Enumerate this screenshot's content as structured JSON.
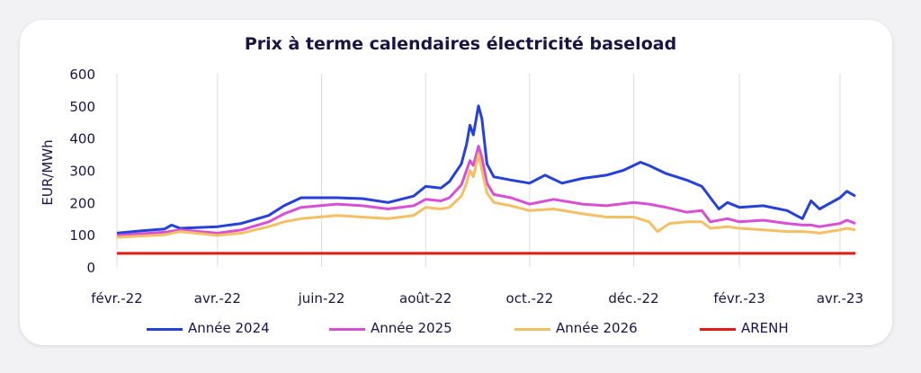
{
  "chart_data": {
    "type": "line",
    "title": "Prix à terme calendaires électricité baseload",
    "ylabel": "EUR/MWh",
    "xlabel": "",
    "ylim": [
      0,
      600
    ],
    "yticks": [
      0,
      100,
      200,
      300,
      400,
      500,
      600
    ],
    "xlim": [
      "2022-02-01",
      "2023-04-10"
    ],
    "xticks": [
      {
        "date": "2022-02-01",
        "label": "févr.-22"
      },
      {
        "date": "2022-04-01",
        "label": "avr.-22"
      },
      {
        "date": "2022-06-01",
        "label": "juin-22"
      },
      {
        "date": "2022-08-01",
        "label": "août-22"
      },
      {
        "date": "2022-10-01",
        "label": "oct.-22"
      },
      {
        "date": "2022-12-01",
        "label": "déc.-22"
      },
      {
        "date": "2023-02-01",
        "label": "févr.-23"
      },
      {
        "date": "2023-04-01",
        "label": "avr.-23"
      }
    ],
    "grid": "vertical",
    "legend_position": "bottom",
    "series": [
      {
        "name": "Année 2024",
        "color": "#2541d9",
        "points": [
          [
            "2022-02-01",
            105
          ],
          [
            "2022-02-15",
            112
          ],
          [
            "2022-03-01",
            118
          ],
          [
            "2022-03-05",
            130
          ],
          [
            "2022-03-10",
            120
          ],
          [
            "2022-04-01",
            125
          ],
          [
            "2022-04-15",
            135
          ],
          [
            "2022-05-01",
            160
          ],
          [
            "2022-05-10",
            190
          ],
          [
            "2022-05-20",
            215
          ],
          [
            "2022-06-10",
            215
          ],
          [
            "2022-06-25",
            212
          ],
          [
            "2022-07-10",
            200
          ],
          [
            "2022-07-25",
            220
          ],
          [
            "2022-08-01",
            250
          ],
          [
            "2022-08-10",
            245
          ],
          [
            "2022-08-15",
            265
          ],
          [
            "2022-08-22",
            320
          ],
          [
            "2022-08-25",
            380
          ],
          [
            "2022-08-27",
            440
          ],
          [
            "2022-08-29",
            410
          ],
          [
            "2022-09-01",
            500
          ],
          [
            "2022-09-03",
            460
          ],
          [
            "2022-09-06",
            320
          ],
          [
            "2022-09-10",
            280
          ],
          [
            "2022-09-20",
            270
          ],
          [
            "2022-10-01",
            260
          ],
          [
            "2022-10-10",
            285
          ],
          [
            "2022-10-20",
            260
          ],
          [
            "2022-11-01",
            275
          ],
          [
            "2022-11-15",
            285
          ],
          [
            "2022-11-25",
            300
          ],
          [
            "2022-12-05",
            325
          ],
          [
            "2022-12-10",
            315
          ],
          [
            "2022-12-20",
            290
          ],
          [
            "2023-01-01",
            270
          ],
          [
            "2023-01-10",
            250
          ],
          [
            "2023-01-15",
            215
          ],
          [
            "2023-01-20",
            180
          ],
          [
            "2023-01-25",
            200
          ],
          [
            "2023-02-01",
            185
          ],
          [
            "2023-02-15",
            190
          ],
          [
            "2023-03-01",
            175
          ],
          [
            "2023-03-10",
            150
          ],
          [
            "2023-03-15",
            205
          ],
          [
            "2023-03-20",
            180
          ],
          [
            "2023-04-01",
            215
          ],
          [
            "2023-04-05",
            235
          ],
          [
            "2023-04-10",
            220
          ]
        ]
      },
      {
        "name": "Année 2025",
        "color": "#d84fd6",
        "points": [
          [
            "2022-02-01",
            98
          ],
          [
            "2022-02-15",
            103
          ],
          [
            "2022-03-01",
            108
          ],
          [
            "2022-03-10",
            115
          ],
          [
            "2022-04-01",
            105
          ],
          [
            "2022-04-15",
            115
          ],
          [
            "2022-05-01",
            140
          ],
          [
            "2022-05-10",
            165
          ],
          [
            "2022-05-20",
            185
          ],
          [
            "2022-06-10",
            195
          ],
          [
            "2022-06-25",
            190
          ],
          [
            "2022-07-10",
            180
          ],
          [
            "2022-07-25",
            190
          ],
          [
            "2022-08-01",
            210
          ],
          [
            "2022-08-10",
            205
          ],
          [
            "2022-08-15",
            215
          ],
          [
            "2022-08-22",
            255
          ],
          [
            "2022-08-25",
            300
          ],
          [
            "2022-08-27",
            330
          ],
          [
            "2022-08-29",
            315
          ],
          [
            "2022-09-01",
            375
          ],
          [
            "2022-09-03",
            340
          ],
          [
            "2022-09-06",
            260
          ],
          [
            "2022-09-10",
            225
          ],
          [
            "2022-09-20",
            215
          ],
          [
            "2022-10-01",
            195
          ],
          [
            "2022-10-15",
            210
          ],
          [
            "2022-11-01",
            195
          ],
          [
            "2022-11-15",
            190
          ],
          [
            "2022-12-01",
            200
          ],
          [
            "2022-12-10",
            195
          ],
          [
            "2022-12-20",
            185
          ],
          [
            "2023-01-01",
            170
          ],
          [
            "2023-01-10",
            175
          ],
          [
            "2023-01-15",
            140
          ],
          [
            "2023-01-25",
            150
          ],
          [
            "2023-02-01",
            140
          ],
          [
            "2023-02-15",
            145
          ],
          [
            "2023-03-01",
            135
          ],
          [
            "2023-03-10",
            130
          ],
          [
            "2023-03-15",
            130
          ],
          [
            "2023-03-20",
            125
          ],
          [
            "2023-04-01",
            135
          ],
          [
            "2023-04-05",
            145
          ],
          [
            "2023-04-10",
            135
          ]
        ]
      },
      {
        "name": "Année 2026",
        "color": "#f4c064",
        "points": [
          [
            "2022-02-01",
            92
          ],
          [
            "2022-02-15",
            96
          ],
          [
            "2022-03-01",
            100
          ],
          [
            "2022-03-10",
            110
          ],
          [
            "2022-04-01",
            98
          ],
          [
            "2022-04-15",
            105
          ],
          [
            "2022-05-01",
            125
          ],
          [
            "2022-05-10",
            140
          ],
          [
            "2022-05-20",
            150
          ],
          [
            "2022-06-10",
            160
          ],
          [
            "2022-06-25",
            155
          ],
          [
            "2022-07-10",
            150
          ],
          [
            "2022-07-25",
            160
          ],
          [
            "2022-08-01",
            185
          ],
          [
            "2022-08-10",
            180
          ],
          [
            "2022-08-15",
            185
          ],
          [
            "2022-08-22",
            220
          ],
          [
            "2022-08-25",
            260
          ],
          [
            "2022-08-27",
            300
          ],
          [
            "2022-08-29",
            280
          ],
          [
            "2022-09-01",
            350
          ],
          [
            "2022-09-03",
            300
          ],
          [
            "2022-09-06",
            230
          ],
          [
            "2022-09-10",
            200
          ],
          [
            "2022-09-20",
            190
          ],
          [
            "2022-10-01",
            175
          ],
          [
            "2022-10-15",
            180
          ],
          [
            "2022-11-01",
            165
          ],
          [
            "2022-11-15",
            155
          ],
          [
            "2022-12-01",
            155
          ],
          [
            "2022-12-10",
            140
          ],
          [
            "2022-12-15",
            110
          ],
          [
            "2022-12-22",
            135
          ],
          [
            "2023-01-01",
            140
          ],
          [
            "2023-01-10",
            140
          ],
          [
            "2023-01-15",
            120
          ],
          [
            "2023-01-25",
            125
          ],
          [
            "2023-02-01",
            120
          ],
          [
            "2023-02-15",
            115
          ],
          [
            "2023-03-01",
            110
          ],
          [
            "2023-03-10",
            110
          ],
          [
            "2023-03-15",
            108
          ],
          [
            "2023-03-20",
            105
          ],
          [
            "2023-04-01",
            115
          ],
          [
            "2023-04-05",
            120
          ],
          [
            "2023-04-10",
            115
          ]
        ]
      },
      {
        "name": "ARENH",
        "color": "#e31b12",
        "points": [
          [
            "2022-02-01",
            42
          ],
          [
            "2023-04-10",
            42
          ]
        ]
      }
    ]
  }
}
